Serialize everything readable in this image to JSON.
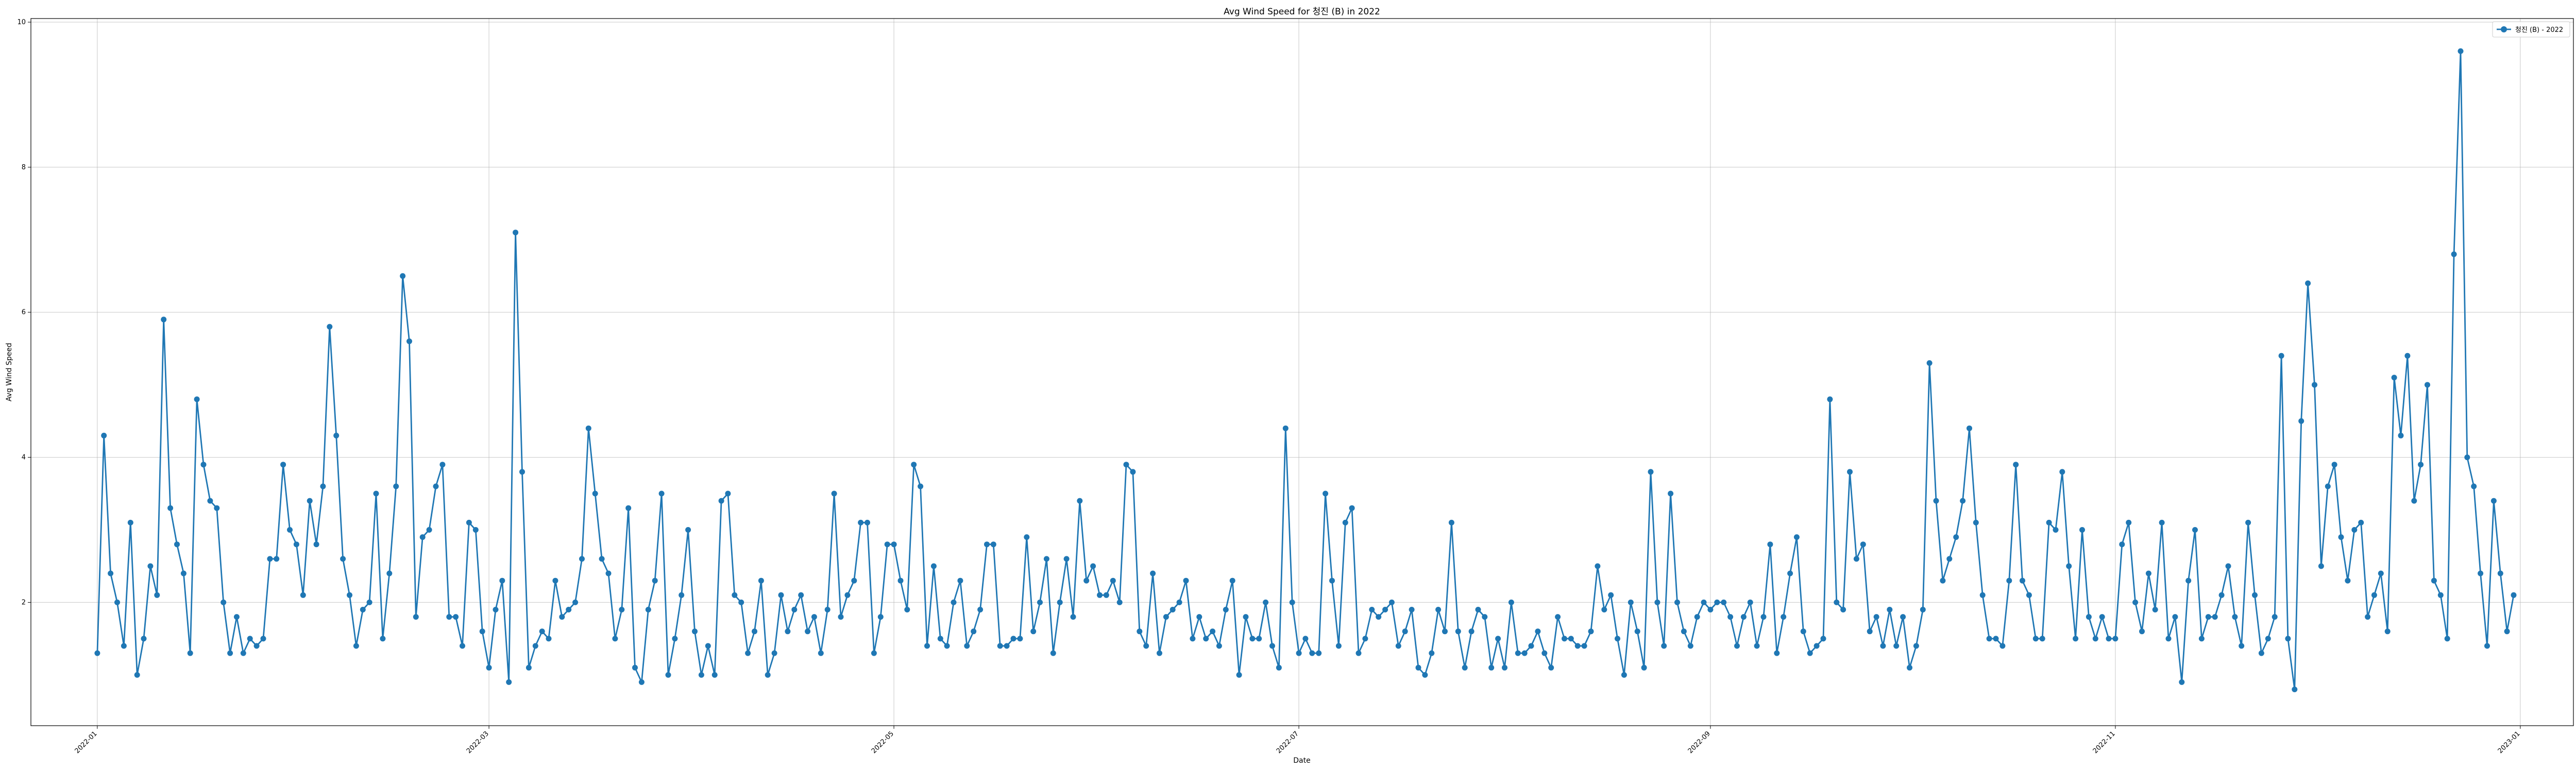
{
  "chart_data": {
    "type": "line",
    "title": "Avg Wind Speed for 청진 (B) in 2022",
    "xlabel": "Date",
    "ylabel": "Avg Wind Speed",
    "legend": {
      "placement": "top-right",
      "entries": [
        "청진 (B) - 2022"
      ]
    },
    "grid": true,
    "xlim": [
      "2021-12-22",
      "2023-01-09"
    ],
    "ylim": [
      0.3,
      10.05
    ],
    "x_ticks": [
      "2022-01-01",
      "2022-03-01",
      "2022-05-01",
      "2022-07-01",
      "2022-09-01",
      "2022-11-01",
      "2023-01-01"
    ],
    "x_tick_labels": [
      "2022-01",
      "2022-03",
      "2022-05",
      "2022-07",
      "2022-09",
      "2022-11",
      "2023-01"
    ],
    "y_ticks": [
      2,
      4,
      6,
      8,
      10
    ],
    "y_tick_labels": [
      "2",
      "4",
      "6",
      "8",
      "10"
    ],
    "color": "#1f77b4",
    "series": [
      {
        "name": "청진 (B) - 2022",
        "x_start": "2022-01-01",
        "x_step_days": 1,
        "values": [
          1.3,
          4.3,
          2.4,
          2.0,
          1.4,
          3.1,
          1.0,
          1.5,
          2.5,
          2.1,
          5.9,
          3.3,
          2.8,
          2.4,
          1.3,
          4.8,
          3.9,
          3.4,
          3.3,
          2.0,
          1.3,
          1.8,
          1.3,
          1.5,
          1.4,
          1.5,
          2.6,
          2.6,
          3.9,
          3.0,
          2.8,
          2.1,
          3.4,
          2.8,
          3.6,
          5.8,
          4.3,
          2.6,
          2.1,
          1.4,
          1.9,
          2.0,
          3.5,
          1.5,
          2.4,
          3.6,
          6.5,
          5.6,
          1.8,
          2.9,
          3.0,
          3.6,
          3.9,
          1.8,
          1.8,
          1.4,
          3.1,
          3.0,
          1.6,
          1.1,
          1.9,
          2.3,
          0.9,
          7.1,
          3.8,
          1.1,
          1.4,
          1.6,
          1.5,
          2.3,
          1.8,
          1.9,
          2.0,
          2.6,
          4.4,
          3.5,
          2.6,
          2.4,
          1.5,
          1.9,
          3.3,
          1.1,
          0.9,
          1.9,
          2.3,
          3.5,
          1.0,
          1.5,
          2.1,
          3.0,
          1.6,
          1.0,
          1.4,
          1.0,
          3.4,
          3.5,
          2.1,
          2.0,
          1.3,
          1.6,
          2.3,
          1.0,
          1.3,
          2.1,
          1.6,
          1.9,
          2.1,
          1.6,
          1.8,
          1.3,
          1.9,
          3.5,
          1.8,
          2.1,
          2.3,
          3.1,
          3.1,
          1.3,
          1.8,
          2.8,
          2.8,
          2.3,
          1.9,
          3.9,
          3.6,
          1.4,
          2.5,
          1.5,
          1.4,
          2.0,
          2.3,
          1.4,
          1.6,
          1.9,
          2.8,
          2.8,
          1.4,
          1.4,
          1.5,
          1.5,
          2.9,
          1.6,
          2.0,
          2.6,
          1.3,
          2.0,
          2.6,
          1.8,
          3.4,
          2.3,
          2.5,
          2.1,
          2.1,
          2.3,
          2.0,
          3.9,
          3.8,
          1.6,
          1.4,
          2.4,
          1.3,
          1.8,
          1.9,
          2.0,
          2.3,
          1.5,
          1.8,
          1.5,
          1.6,
          1.4,
          1.9,
          2.3,
          1.0,
          1.8,
          1.5,
          1.5,
          2.0,
          1.4,
          1.1,
          4.4,
          2.0,
          1.3,
          1.5,
          1.3,
          1.3,
          3.5,
          2.3,
          1.4,
          3.1,
          3.3,
          1.3,
          1.5,
          1.9,
          1.8,
          1.9,
          2.0,
          1.4,
          1.6,
          1.9,
          1.1,
          1.0,
          1.3,
          1.9,
          1.6,
          3.1,
          1.6,
          1.1,
          1.6,
          1.9,
          1.8,
          1.1,
          1.5,
          1.1,
          2.0,
          1.3,
          1.3,
          1.4,
          1.6,
          1.3,
          1.1,
          1.8,
          1.5,
          1.5,
          1.4,
          1.4,
          1.6,
          2.5,
          1.9,
          2.1,
          1.5,
          1.0,
          2.0,
          1.6,
          1.1,
          3.8,
          2.0,
          1.4,
          3.5,
          2.0,
          1.6,
          1.4,
          1.8,
          2.0,
          1.9,
          2.0,
          2.0,
          1.8,
          1.4,
          1.8,
          2.0,
          1.4,
          1.8,
          2.8,
          1.3,
          1.8,
          2.4,
          2.9,
          1.6,
          1.3,
          1.4,
          1.5,
          4.8,
          2.0,
          1.9,
          3.8,
          2.6,
          2.8,
          1.6,
          1.8,
          1.4,
          1.9,
          1.4,
          1.8,
          1.1,
          1.4,
          1.9,
          5.3,
          3.4,
          2.3,
          2.6,
          2.9,
          3.4,
          4.4,
          3.1,
          2.1,
          1.5,
          1.5,
          1.4,
          2.3,
          3.9,
          2.3,
          2.1,
          1.5,
          1.5,
          3.1,
          3.0,
          3.8,
          2.5,
          1.5,
          3.0,
          1.8,
          1.5,
          1.8,
          1.5,
          1.5,
          2.8,
          3.1,
          2.0,
          1.6,
          2.4,
          1.9,
          3.1,
          1.5,
          1.8,
          0.9,
          2.3,
          3.0,
          1.5,
          1.8,
          1.8,
          2.1,
          2.5,
          1.8,
          1.4,
          3.1,
          2.1,
          1.3,
          1.5,
          1.8,
          5.4,
          1.5,
          0.8,
          4.5,
          6.4,
          5.0,
          2.5,
          3.6,
          3.9,
          2.9,
          2.3,
          3.0,
          3.1,
          1.8,
          2.1,
          2.4,
          1.6,
          5.1,
          4.3,
          5.4,
          3.4,
          3.9,
          5.0,
          2.3,
          2.1,
          1.5,
          6.8,
          9.6,
          4.0,
          3.6,
          2.4,
          1.4,
          3.4,
          2.4,
          1.6,
          2.1
        ]
      }
    ]
  }
}
